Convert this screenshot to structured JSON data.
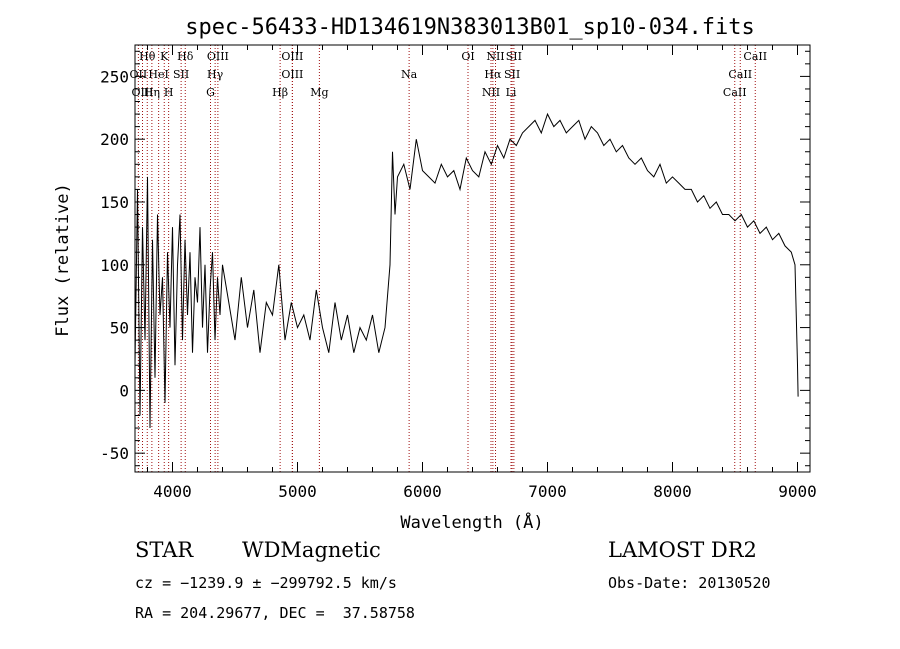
{
  "chart_data": {
    "type": "line",
    "title": "spec-56433-HD134619N383013B01_sp10-034.fits",
    "xlabel": "Wavelength (Å)",
    "ylabel": "Flux (relative)",
    "xlim": [
      3700,
      9100
    ],
    "ylim": [
      -65,
      275
    ],
    "xticks": [
      4000,
      5000,
      6000,
      7000,
      8000,
      9000
    ],
    "yticks": [
      -50,
      0,
      50,
      100,
      150,
      200,
      250
    ],
    "grid": false,
    "line_color": "#000000",
    "marker_color": "#a01010",
    "series": [
      {
        "x": [
          3700,
          3720,
          3740,
          3760,
          3780,
          3800,
          3820,
          3840,
          3860,
          3880,
          3900,
          3920,
          3940,
          3960,
          3980,
          4000,
          4020,
          4040,
          4060,
          4080,
          4100,
          4120,
          4140,
          4160,
          4180,
          4200,
          4220,
          4240,
          4260,
          4280,
          4300,
          4320,
          4340,
          4360,
          4380,
          4400,
          4450,
          4500,
          4550,
          4600,
          4650,
          4700,
          4750,
          4800,
          4850,
          4900,
          4950,
          5000,
          5050,
          5100,
          5150,
          5200,
          5250,
          5300,
          5350,
          5400,
          5450,
          5500,
          5550,
          5600,
          5650,
          5700,
          5740,
          5760,
          5780,
          5800,
          5850,
          5900,
          5950,
          6000,
          6050,
          6100,
          6150,
          6200,
          6250,
          6300,
          6350,
          6400,
          6450,
          6500,
          6550,
          6600,
          6650,
          6700,
          6750,
          6800,
          6850,
          6900,
          6950,
          7000,
          7050,
          7100,
          7150,
          7200,
          7250,
          7300,
          7350,
          7400,
          7450,
          7500,
          7550,
          7600,
          7650,
          7700,
          7750,
          7800,
          7850,
          7900,
          7950,
          8000,
          8050,
          8100,
          8150,
          8200,
          8250,
          8300,
          8350,
          8400,
          8450,
          8500,
          8550,
          8600,
          8650,
          8700,
          8750,
          8800,
          8850,
          8900,
          8950,
          8980,
          9000,
          9005
        ],
        "y": [
          20,
          160,
          -20,
          130,
          40,
          170,
          -30,
          120,
          10,
          140,
          60,
          90,
          -10,
          110,
          50,
          130,
          20,
          100,
          140,
          40,
          120,
          60,
          110,
          30,
          90,
          70,
          130,
          50,
          100,
          30,
          80,
          110,
          40,
          90,
          60,
          100,
          70,
          40,
          90,
          50,
          80,
          30,
          70,
          60,
          100,
          40,
          70,
          50,
          60,
          40,
          80,
          50,
          30,
          70,
          40,
          60,
          30,
          50,
          40,
          60,
          30,
          50,
          100,
          190,
          140,
          170,
          180,
          160,
          200,
          175,
          170,
          165,
          180,
          170,
          175,
          160,
          185,
          175,
          170,
          190,
          180,
          195,
          185,
          200,
          195,
          205,
          210,
          215,
          205,
          220,
          210,
          215,
          205,
          210,
          215,
          200,
          210,
          205,
          195,
          200,
          190,
          195,
          185,
          180,
          185,
          175,
          170,
          180,
          165,
          170,
          165,
          160,
          160,
          150,
          155,
          145,
          150,
          140,
          140,
          135,
          140,
          130,
          135,
          125,
          130,
          120,
          125,
          115,
          110,
          100,
          20,
          -5
        ]
      }
    ],
    "lines": [
      {
        "label": "Hθ",
        "x": 3798,
        "row": 1
      },
      {
        "label": "OII",
        "x": 3727,
        "row": 2
      },
      {
        "label": "OIII",
        "x": 3760,
        "row": 3
      },
      {
        "label": "K",
        "x": 3934,
        "row": 1
      },
      {
        "label": "HeI",
        "x": 3889,
        "row": 2
      },
      {
        "label": "Hη",
        "x": 3835,
        "row": 3
      },
      {
        "label": "Hδ",
        "x": 4102,
        "row": 1
      },
      {
        "label": "SII",
        "x": 4069,
        "row": 2
      },
      {
        "label": "H",
        "x": 3969,
        "row": 3
      },
      {
        "label": "OIII",
        "x": 4363,
        "row": 1
      },
      {
        "label": "Hγ",
        "x": 4341,
        "row": 2
      },
      {
        "label": "G",
        "x": 4304,
        "row": 3
      },
      {
        "label": "OIII",
        "x": 4959,
        "row": 1
      },
      {
        "label": "OIII",
        "x": 4959,
        "row": 2
      },
      {
        "label": "Hβ",
        "x": 4861,
        "row": 3
      },
      {
        "label": "Mg",
        "x": 5175,
        "row": 3
      },
      {
        "label": "Na",
        "x": 5893,
        "row": 2
      },
      {
        "label": "OI",
        "x": 6364,
        "row": 1
      },
      {
        "label": "NII",
        "x": 6584,
        "row": 1
      },
      {
        "label": "SII",
        "x": 6731,
        "row": 1
      },
      {
        "label": "Hα",
        "x": 6563,
        "row": 2
      },
      {
        "label": "SII",
        "x": 6717,
        "row": 2
      },
      {
        "label": "NII",
        "x": 6548,
        "row": 3
      },
      {
        "label": "Li",
        "x": 6708,
        "row": 3
      },
      {
        "label": "CaII",
        "x": 8662,
        "row": 1
      },
      {
        "label": "CaII",
        "x": 8542,
        "row": 2
      },
      {
        "label": "CaII",
        "x": 8498,
        "row": 3
      }
    ]
  },
  "info": {
    "object_class": "STAR",
    "subclass": "WDMagnetic",
    "survey": "LAMOST DR2",
    "cz": "cz = −1239.9 ± −299792.5 km/s",
    "obs_date": "Obs-Date: 20130520",
    "radec": "RA = 204.29677, DEC =  37.58758"
  }
}
